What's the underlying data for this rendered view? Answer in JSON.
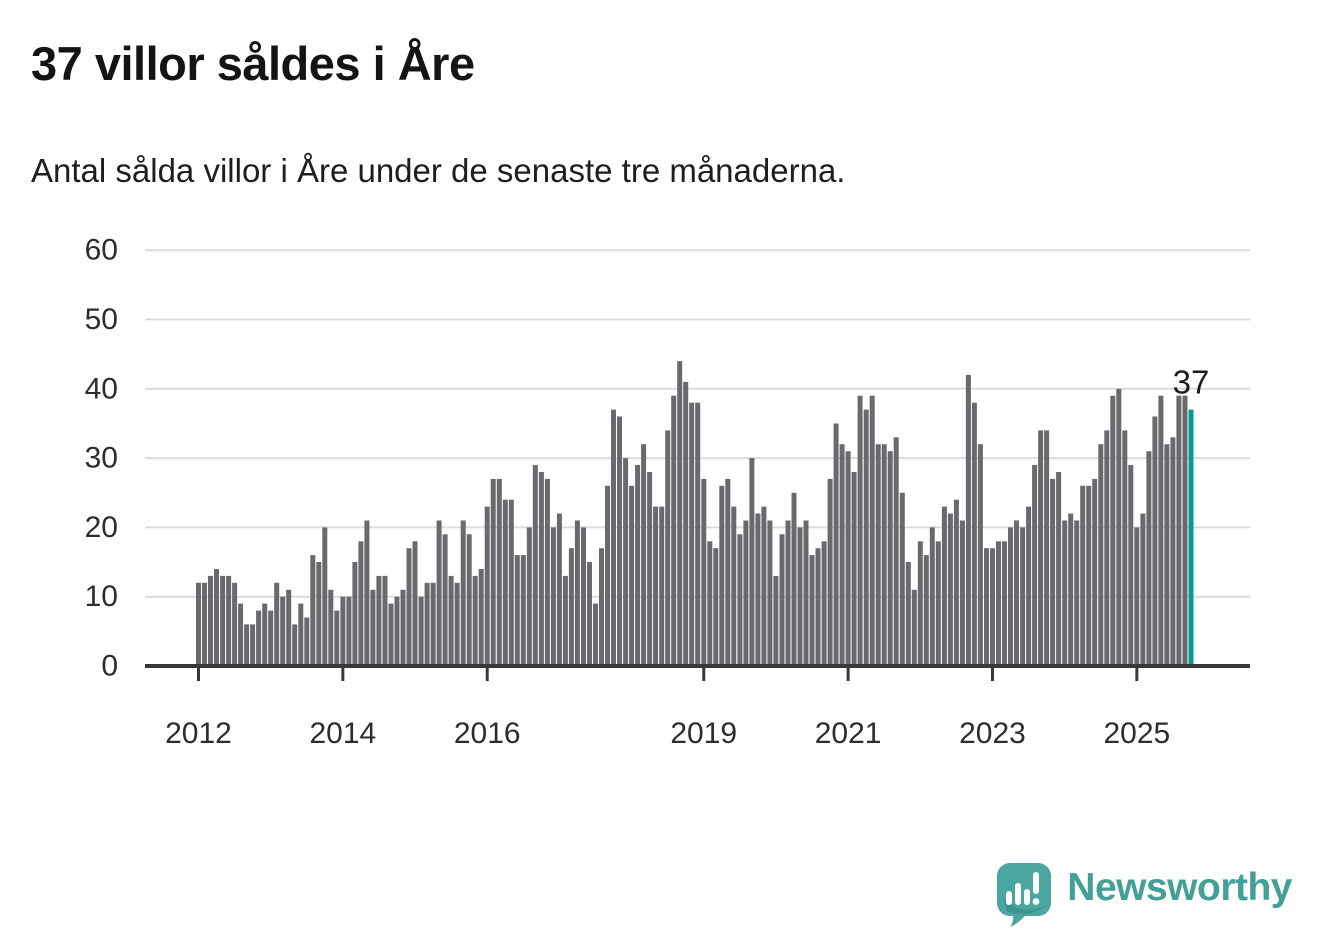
{
  "header": {
    "title": "37 villor såldes i Åre",
    "subtitle": "Antal sålda villor i Åre under de senaste tre månaderna."
  },
  "footer": {
    "brand": "Newsworthy",
    "logo_icon": "speech-bubble-with-bar-chart-and-exclamation"
  },
  "colors": {
    "bar": "#6a6a6e",
    "highlight": "#009c9c",
    "grid": "#dcdcdc",
    "axis": "#383838",
    "axis_text": "#2d2d2d",
    "annotation_text": "#1c1c1c",
    "brand_teal": "#43a096",
    "background": "#ffffff"
  },
  "chart_data": {
    "type": "bar",
    "title": "37 villor såldes i Åre",
    "subtitle": "Antal sålda villor i Åre under de senaste tre månaderna.",
    "frequency": "monthly",
    "start_year": 2012,
    "ylim": [
      0,
      60
    ],
    "yticks": [
      0,
      10,
      20,
      30,
      40,
      50,
      60
    ],
    "year_ticks": [
      2012,
      2014,
      2016,
      2019,
      2021,
      2023,
      2025
    ],
    "grid": "horizontal",
    "legend": "none",
    "annotation": {
      "text": "37",
      "target": "last-bar"
    },
    "highlight_last_bar": true,
    "values": [
      12,
      12,
      13,
      14,
      13,
      13,
      12,
      9,
      6,
      6,
      8,
      9,
      8,
      12,
      10,
      11,
      6,
      9,
      7,
      16,
      15,
      20,
      11,
      8,
      10,
      10,
      15,
      18,
      21,
      11,
      13,
      13,
      9,
      10,
      11,
      17,
      18,
      10,
      12,
      12,
      21,
      19,
      13,
      12,
      21,
      19,
      13,
      14,
      23,
      27,
      27,
      24,
      24,
      16,
      16,
      20,
      29,
      28,
      27,
      20,
      22,
      13,
      17,
      21,
      20,
      15,
      9,
      17,
      26,
      37,
      36,
      30,
      26,
      29,
      32,
      28,
      23,
      23,
      34,
      39,
      44,
      41,
      38,
      38,
      27,
      18,
      17,
      26,
      27,
      23,
      19,
      21,
      30,
      22,
      23,
      21,
      13,
      19,
      21,
      25,
      20,
      21,
      16,
      17,
      18,
      27,
      35,
      32,
      31,
      28,
      39,
      37,
      39,
      32,
      32,
      31,
      33,
      25,
      15,
      11,
      18,
      16,
      20,
      18,
      23,
      22,
      24,
      21,
      42,
      38,
      32,
      17,
      17,
      18,
      18,
      20,
      21,
      20,
      23,
      29,
      34,
      34,
      27,
      28,
      21,
      22,
      21,
      26,
      26,
      27,
      32,
      34,
      39,
      40,
      34,
      29,
      20,
      22,
      31,
      36,
      39,
      32,
      33,
      39,
      39,
      37
    ]
  }
}
